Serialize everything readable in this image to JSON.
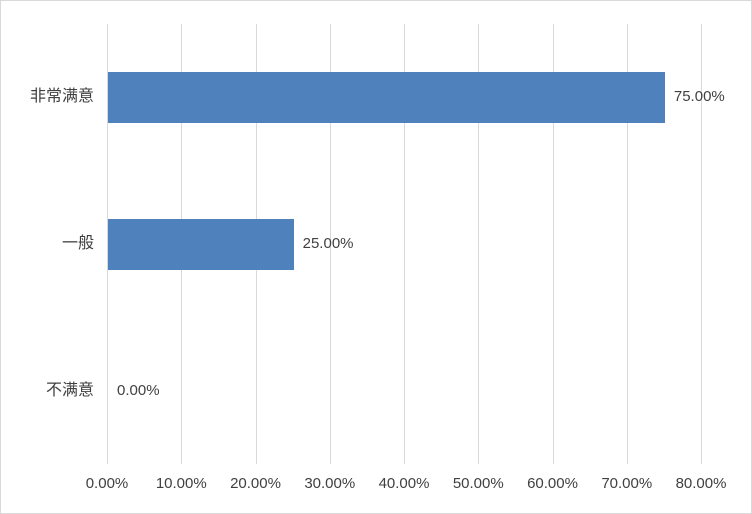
{
  "chart_data": {
    "type": "bar",
    "orientation": "horizontal",
    "title": "",
    "xlabel": "",
    "ylabel": "",
    "grid": true,
    "legend": false,
    "categories": [
      "非常满意",
      "一般",
      "不满意"
    ],
    "values": [
      75.0,
      25.0,
      0.0
    ],
    "value_labels": [
      "75.00%",
      "25.00%",
      "0.00%"
    ],
    "x_ticks": [
      "0.00%",
      "10.00%",
      "20.00%",
      "30.00%",
      "40.00%",
      "50.00%",
      "60.00%",
      "70.00%",
      "80.00%"
    ],
    "xlim": [
      0,
      80
    ],
    "colors": {
      "bar": "#4F81BD",
      "gridline": "#D9D9D9",
      "frame_border": "#D9D9D9",
      "text": "#404040",
      "background": "#FFFFFF"
    }
  }
}
